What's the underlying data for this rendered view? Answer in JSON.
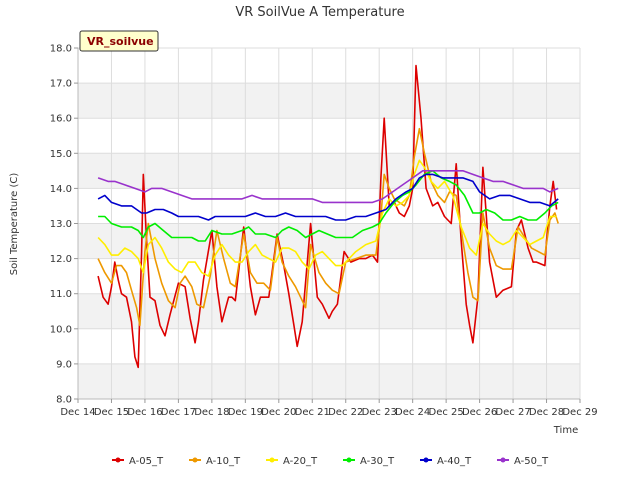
{
  "chart_data": {
    "type": "line",
    "title": "VR SoilVue A Temperature",
    "xlabel": "Time",
    "ylabel": "Soil Temperature (C)",
    "station_label": "VR_soilvue",
    "ylim": [
      8.0,
      18.0
    ],
    "yticks": [
      "8.0",
      "9.0",
      "10.0",
      "11.0",
      "12.0",
      "13.0",
      "14.0",
      "15.0",
      "16.0",
      "17.0",
      "18.0"
    ],
    "xlim": [
      14,
      29
    ],
    "xticks": [
      "Dec 14",
      "Dec 15",
      "Dec 16",
      "Dec 17",
      "Dec 18",
      "Dec 19",
      "Dec 20",
      "Dec 21",
      "Dec 22",
      "Dec 23",
      "Dec 24",
      "Dec 25",
      "Dec 26",
      "Dec 27",
      "Dec 28",
      "Dec 29"
    ],
    "grid": true,
    "legend": "bottom",
    "series": [
      {
        "name": "A-05_T",
        "color": "#dd0000",
        "x": [
          14.6,
          14.75,
          14.9,
          15.0,
          15.1,
          15.2,
          15.3,
          15.45,
          15.6,
          15.7,
          15.8,
          15.9,
          15.95,
          16.05,
          16.15,
          16.3,
          16.45,
          16.6,
          16.75,
          17.0,
          17.2,
          17.35,
          17.5,
          17.6,
          17.75,
          18.0,
          18.15,
          18.3,
          18.5,
          18.6,
          18.7,
          18.95,
          19.15,
          19.3,
          19.45,
          19.6,
          19.7,
          19.95,
          20.15,
          20.3,
          20.45,
          20.55,
          20.7,
          20.95,
          21.15,
          21.3,
          21.5,
          21.6,
          21.75,
          21.95,
          22.15,
          22.4,
          22.6,
          22.8,
          22.95,
          23.05,
          23.15,
          23.3,
          23.45,
          23.6,
          23.75,
          23.9,
          24.0,
          24.1,
          24.25,
          24.4,
          24.6,
          24.75,
          24.95,
          25.15,
          25.3,
          25.45,
          25.6,
          25.7,
          25.8,
          25.95,
          26.1,
          26.3,
          26.5,
          26.7,
          26.95,
          27.1,
          27.25,
          27.45,
          27.6,
          27.7,
          27.95,
          28.0,
          28.1,
          28.2,
          28.3
        ],
        "y": [
          11.5,
          10.9,
          10.7,
          11.2,
          11.9,
          11.4,
          11.0,
          10.9,
          10.2,
          9.2,
          8.9,
          12.2,
          14.4,
          12.5,
          10.9,
          10.8,
          10.1,
          9.8,
          10.4,
          11.3,
          11.2,
          10.3,
          9.6,
          10.2,
          11.4,
          12.8,
          11.2,
          10.2,
          10.9,
          10.9,
          10.8,
          12.9,
          11.2,
          10.4,
          10.9,
          10.9,
          10.9,
          12.7,
          11.8,
          11.0,
          10.1,
          9.5,
          10.2,
          13.0,
          10.9,
          10.7,
          10.3,
          10.5,
          10.7,
          12.2,
          11.9,
          12.0,
          12.0,
          12.1,
          11.9,
          14.3,
          16.0,
          13.5,
          13.6,
          13.3,
          13.2,
          13.5,
          14.0,
          17.5,
          16.0,
          14.0,
          13.5,
          13.6,
          13.2,
          13.0,
          14.7,
          12.5,
          10.7,
          10.1,
          9.6,
          10.9,
          14.6,
          11.9,
          10.9,
          11.1,
          11.2,
          12.8,
          13.1,
          12.3,
          11.9,
          11.9,
          11.8,
          12.5,
          13.5,
          14.2,
          13.4
        ]
      },
      {
        "name": "A-10_T",
        "color": "#ee9900",
        "x": [
          14.6,
          14.8,
          15.0,
          15.15,
          15.3,
          15.45,
          15.6,
          15.75,
          15.85,
          16.0,
          16.1,
          16.3,
          16.5,
          16.7,
          16.9,
          17.05,
          17.2,
          17.4,
          17.55,
          17.75,
          17.95,
          18.15,
          18.35,
          18.55,
          18.7,
          18.95,
          19.15,
          19.35,
          19.55,
          19.75,
          19.95,
          20.1,
          20.3,
          20.5,
          20.65,
          20.8,
          20.95,
          21.2,
          21.4,
          21.6,
          21.8,
          22.0,
          22.3,
          22.6,
          22.9,
          23.05,
          23.15,
          23.3,
          23.45,
          23.6,
          23.75,
          23.9,
          24.05,
          24.2,
          24.35,
          24.55,
          24.75,
          24.95,
          25.1,
          25.3,
          25.5,
          25.65,
          25.8,
          25.95,
          26.1,
          26.3,
          26.5,
          26.7,
          26.95,
          27.15,
          27.35,
          27.55,
          27.75,
          27.95,
          28.1,
          28.25,
          28.35
        ],
        "y": [
          12.0,
          11.6,
          11.3,
          11.8,
          11.8,
          11.6,
          11.1,
          10.6,
          10.1,
          12.2,
          13.0,
          12.0,
          11.3,
          10.8,
          10.6,
          11.3,
          11.5,
          11.2,
          10.7,
          10.6,
          11.5,
          12.8,
          12.0,
          11.3,
          11.2,
          12.7,
          11.6,
          11.3,
          11.3,
          11.1,
          12.6,
          11.9,
          11.5,
          11.2,
          10.9,
          10.6,
          12.4,
          11.6,
          11.3,
          11.1,
          11.0,
          11.9,
          12.0,
          12.1,
          12.1,
          13.2,
          14.4,
          14.0,
          13.7,
          13.6,
          13.5,
          13.8,
          14.9,
          15.7,
          15.0,
          14.2,
          13.8,
          13.6,
          13.9,
          13.8,
          12.5,
          11.6,
          10.9,
          10.8,
          13.3,
          12.3,
          11.8,
          11.7,
          11.7,
          12.9,
          12.6,
          12.3,
          12.2,
          12.1,
          13.1,
          13.3,
          13.0
        ]
      },
      {
        "name": "A-20_T",
        "color": "#ffee00",
        "x": [
          14.6,
          14.8,
          15.0,
          15.2,
          15.4,
          15.6,
          15.8,
          15.95,
          16.1,
          16.3,
          16.5,
          16.7,
          16.9,
          17.1,
          17.3,
          17.5,
          17.7,
          17.9,
          18.1,
          18.3,
          18.5,
          18.7,
          18.9,
          19.1,
          19.3,
          19.5,
          19.7,
          19.9,
          20.1,
          20.3,
          20.5,
          20.7,
          20.9,
          21.1,
          21.3,
          21.5,
          21.7,
          21.9,
          22.1,
          22.3,
          22.6,
          22.9,
          23.1,
          23.3,
          23.5,
          23.7,
          23.9,
          24.05,
          24.2,
          24.35,
          24.55,
          24.75,
          24.95,
          25.2,
          25.45,
          25.7,
          25.9,
          26.1,
          26.3,
          26.5,
          26.7,
          26.9,
          27.1,
          27.3,
          27.5,
          27.7,
          27.9,
          28.1,
          28.3
        ],
        "y": [
          12.6,
          12.4,
          12.1,
          12.1,
          12.3,
          12.2,
          12.0,
          11.6,
          12.4,
          12.6,
          12.3,
          11.9,
          11.7,
          11.6,
          11.9,
          11.9,
          11.6,
          11.5,
          12.1,
          12.4,
          12.1,
          11.9,
          11.9,
          12.2,
          12.4,
          12.1,
          12.0,
          11.9,
          12.3,
          12.3,
          12.2,
          11.9,
          11.7,
          12.1,
          12.2,
          12.0,
          11.8,
          11.8,
          12.0,
          12.2,
          12.4,
          12.5,
          13.3,
          13.7,
          13.5,
          13.6,
          13.8,
          14.4,
          14.8,
          14.6,
          14.2,
          14.0,
          14.2,
          13.8,
          12.9,
          12.3,
          12.1,
          13.0,
          12.7,
          12.5,
          12.4,
          12.5,
          12.8,
          12.6,
          12.4,
          12.5,
          12.6,
          13.2,
          13.2
        ]
      },
      {
        "name": "A-30_T",
        "color": "#00ee00",
        "x": [
          14.6,
          14.8,
          15.0,
          15.3,
          15.6,
          15.8,
          15.95,
          16.1,
          16.3,
          16.55,
          16.8,
          17.0,
          17.2,
          17.4,
          17.6,
          17.8,
          18.0,
          18.3,
          18.6,
          18.9,
          19.1,
          19.3,
          19.6,
          19.9,
          20.1,
          20.3,
          20.55,
          20.8,
          21.0,
          21.2,
          21.45,
          21.7,
          21.95,
          22.2,
          22.5,
          22.8,
          23.0,
          23.2,
          23.45,
          23.7,
          23.9,
          24.1,
          24.35,
          24.6,
          24.85,
          25.1,
          25.3,
          25.55,
          25.8,
          26.0,
          26.2,
          26.45,
          26.7,
          26.95,
          27.2,
          27.45,
          27.7,
          27.95,
          28.15,
          28.35
        ],
        "y": [
          13.2,
          13.2,
          13.0,
          12.9,
          12.9,
          12.8,
          12.6,
          12.9,
          13.0,
          12.8,
          12.6,
          12.6,
          12.6,
          12.6,
          12.5,
          12.5,
          12.8,
          12.7,
          12.7,
          12.8,
          12.9,
          12.7,
          12.7,
          12.6,
          12.8,
          12.9,
          12.8,
          12.6,
          12.7,
          12.8,
          12.7,
          12.6,
          12.6,
          12.6,
          12.8,
          12.9,
          13.0,
          13.3,
          13.6,
          13.8,
          13.9,
          14.1,
          14.4,
          14.5,
          14.3,
          14.2,
          14.1,
          13.8,
          13.3,
          13.3,
          13.4,
          13.3,
          13.1,
          13.1,
          13.2,
          13.1,
          13.1,
          13.3,
          13.5,
          13.6
        ]
      },
      {
        "name": "A-40_T",
        "color": "#0000cc",
        "x": [
          14.6,
          14.8,
          15.0,
          15.3,
          15.6,
          15.9,
          16.05,
          16.3,
          16.55,
          16.8,
          17.0,
          17.3,
          17.6,
          17.9,
          18.1,
          18.4,
          18.7,
          19.0,
          19.3,
          19.6,
          19.9,
          20.2,
          20.5,
          20.8,
          21.1,
          21.4,
          21.7,
          22.0,
          22.3,
          22.6,
          22.9,
          23.2,
          23.5,
          23.8,
          24.0,
          24.2,
          24.4,
          24.6,
          24.9,
          25.2,
          25.5,
          25.8,
          26.0,
          26.3,
          26.6,
          26.9,
          27.2,
          27.5,
          27.8,
          28.1,
          28.35
        ],
        "y": [
          13.7,
          13.8,
          13.6,
          13.5,
          13.5,
          13.3,
          13.3,
          13.4,
          13.4,
          13.3,
          13.2,
          13.2,
          13.2,
          13.1,
          13.2,
          13.2,
          13.2,
          13.2,
          13.3,
          13.2,
          13.2,
          13.3,
          13.2,
          13.2,
          13.2,
          13.2,
          13.1,
          13.1,
          13.2,
          13.2,
          13.3,
          13.4,
          13.7,
          13.9,
          14.0,
          14.3,
          14.4,
          14.4,
          14.3,
          14.3,
          14.3,
          14.2,
          13.9,
          13.7,
          13.8,
          13.8,
          13.7,
          13.6,
          13.6,
          13.5,
          13.7
        ]
      },
      {
        "name": "A-50_T",
        "color": "#9933cc",
        "x": [
          14.6,
          14.9,
          15.1,
          15.4,
          15.7,
          16.0,
          16.2,
          16.5,
          16.8,
          17.1,
          17.4,
          17.7,
          18.0,
          18.3,
          18.6,
          18.9,
          19.2,
          19.5,
          19.8,
          20.1,
          20.4,
          20.7,
          21.0,
          21.3,
          21.6,
          21.9,
          22.2,
          22.5,
          22.8,
          23.1,
          23.4,
          23.7,
          24.0,
          24.3,
          24.6,
          24.9,
          25.2,
          25.5,
          25.8,
          26.1,
          26.4,
          26.7,
          27.0,
          27.3,
          27.6,
          27.9,
          28.1,
          28.35
        ],
        "y": [
          14.3,
          14.2,
          14.2,
          14.1,
          14.0,
          13.9,
          14.0,
          14.0,
          13.9,
          13.8,
          13.7,
          13.7,
          13.7,
          13.7,
          13.7,
          13.7,
          13.8,
          13.7,
          13.7,
          13.7,
          13.7,
          13.7,
          13.7,
          13.6,
          13.6,
          13.6,
          13.6,
          13.6,
          13.6,
          13.7,
          13.9,
          14.1,
          14.3,
          14.5,
          14.5,
          14.5,
          14.5,
          14.5,
          14.4,
          14.3,
          14.2,
          14.2,
          14.1,
          14.0,
          14.0,
          14.0,
          13.9,
          14.0
        ]
      }
    ]
  }
}
